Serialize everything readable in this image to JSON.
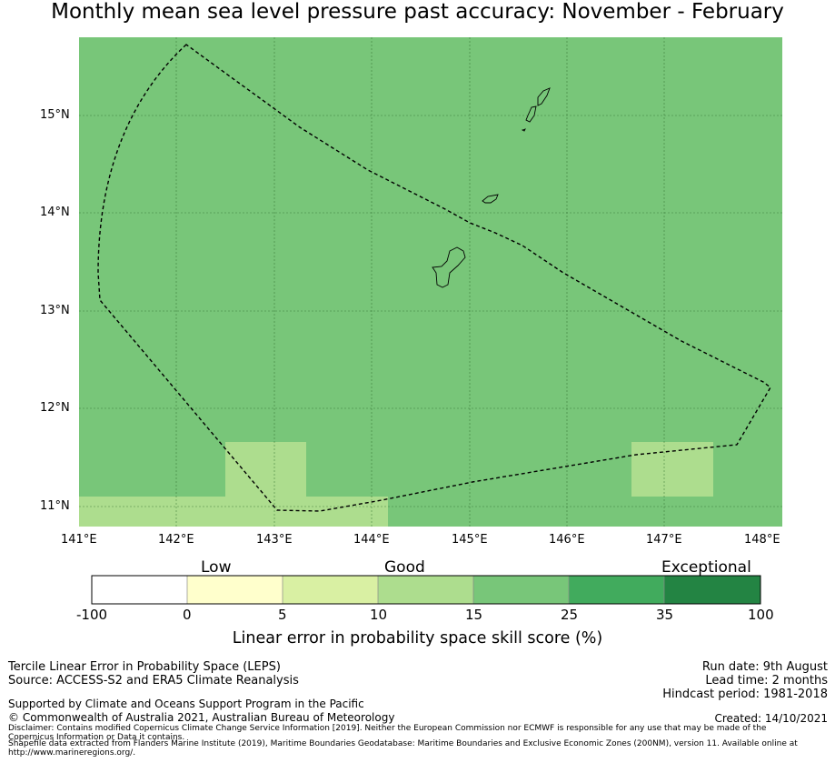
{
  "title": "Monthly mean sea level pressure past accuracy: November - February",
  "map": {
    "lat_labels": [
      "15°N",
      "14°N",
      "13°N",
      "12°N",
      "11°N"
    ],
    "lon_labels": [
      "141°E",
      "142°E",
      "143°E",
      "144°E",
      "145°E",
      "146°E",
      "147°E",
      "148°E"
    ],
    "base_color": "#78c679",
    "light_color": "#addd8e"
  },
  "colorbar": {
    "category_labels": [
      "Low",
      "Good",
      "Exceptional"
    ],
    "ticks": [
      "-100",
      "0",
      "5",
      "10",
      "15",
      "25",
      "35",
      "100"
    ],
    "colors": [
      "#ffffff",
      "#ffffcc",
      "#d9f0a3",
      "#addd8e",
      "#78c679",
      "#41ab5d",
      "#238443"
    ],
    "title": "Linear error in probability space skill score (%)"
  },
  "info": {
    "line1": "Tercile Linear Error in Probability Space (LEPS)",
    "line2": "Source: ACCESS-S2 and ERA5 Climate Reanalysis",
    "run_date": "Run date: 9th August",
    "lead_time": "Lead time: 2 months",
    "hindcast": "Hindcast period: 1981-2018",
    "supported": "Supported by Climate and Oceans Support Program in the Pacific",
    "copyright": "© Commonwealth of Australia 2021, Australian Bureau of Meteorology",
    "created": "Created: 14/10/2021",
    "disclaimer": "Disclaimer: Contains modified Copernicus Climate Change Service Information [2019]. Neither the European Commission nor ECMWF is responsible for any use that may be made of the",
    "disclaimer2": "Copernicus Information or Data it contains.",
    "shapefile": "Shapefile data extracted from Flanders Marine Institute (2019), Maritime Boundaries Geodatabase: Maritime Boundaries and Exclusive Economic Zones (200NM), version 11. Available online at",
    "shapefile2": "http://www.marineregions.org/."
  }
}
